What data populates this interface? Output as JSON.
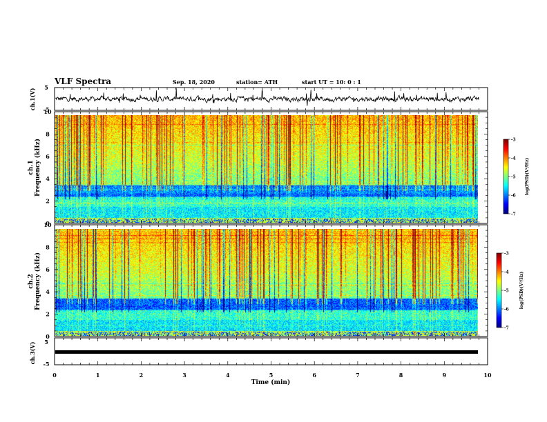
{
  "header": {
    "title": "VLF Spectra",
    "date": "Sep. 18, 2020",
    "station": "station= ATH",
    "start_ut": "start  UT  =   10: 0  : 1"
  },
  "chart_data": [
    {
      "type": "line",
      "name_label": "ch.1(V)",
      "ylim": [
        -5,
        5
      ],
      "yticks": [
        5,
        -5
      ],
      "xlim": [
        0,
        10
      ],
      "description_series": "waveform",
      "x_end": 9.8
    },
    {
      "type": "heatmap",
      "ylabel_line1": "ch.1",
      "ylabel_line2": "Frequency (kHz)",
      "ylim": [
        0,
        10
      ],
      "yticks": [
        0,
        2,
        4,
        6,
        8,
        10
      ],
      "xlim": [
        0,
        10
      ],
      "x_end": 9.8,
      "colorbar": {
        "label": "log(PSD)(V²/Hz)",
        "range": [
          -7,
          -3
        ],
        "ticks": [
          -3,
          -4,
          -5,
          -6,
          -7
        ]
      }
    },
    {
      "type": "heatmap",
      "ylabel_line1": "ch.2",
      "ylabel_line2": "Frequency (kHz)",
      "ylim": [
        0,
        10
      ],
      "yticks": [
        0,
        2,
        4,
        6,
        8,
        10
      ],
      "xlim": [
        0,
        10
      ],
      "x_end": 9.8,
      "colorbar": {
        "label": "log(PSD)(V²/Hz)",
        "range": [
          -7,
          -3
        ],
        "ticks": [
          -3,
          -4,
          -5,
          -6,
          -7
        ]
      }
    },
    {
      "type": "line",
      "name_label": "ch.3(V)",
      "ylim": [
        -5,
        5
      ],
      "yticks": [
        5,
        -5
      ],
      "xlim": [
        0,
        10
      ],
      "x_end": 9.8,
      "xlabel": "Time (min)",
      "xticks": [
        0,
        1,
        2,
        3,
        4,
        5,
        6,
        7,
        8,
        9,
        10
      ]
    }
  ]
}
